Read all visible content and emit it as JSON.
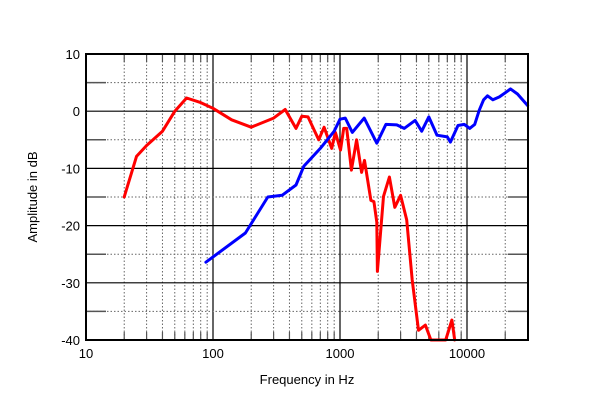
{
  "chart_data": {
    "type": "line",
    "title": "",
    "xlabel": "Frequency in Hz",
    "ylabel": "Amplitude in dB",
    "xscale": "log",
    "xlim": [
      10,
      30000
    ],
    "ylim": [
      -40,
      10
    ],
    "x_tick_labels": [
      "10",
      "100",
      "1000",
      "10000"
    ],
    "y_tick_labels": [
      "10",
      "0",
      "-10",
      "-20",
      "-30",
      "-40"
    ],
    "grid": true,
    "legend": null,
    "series": [
      {
        "name": "red",
        "color": "#ff0000",
        "points": [
          [
            20,
            -15
          ],
          [
            25,
            -7.9
          ],
          [
            30,
            -6
          ],
          [
            40,
            -3.5
          ],
          [
            50,
            0
          ],
          [
            62,
            2.3
          ],
          [
            80,
            1.5
          ],
          [
            100,
            0.5
          ],
          [
            140,
            -1.5
          ],
          [
            200,
            -2.8
          ],
          [
            300,
            -1.2
          ],
          [
            370,
            0.3
          ],
          [
            450,
            -3
          ],
          [
            500,
            -0.9
          ],
          [
            560,
            -1
          ],
          [
            680,
            -5
          ],
          [
            750,
            -2.8
          ],
          [
            860,
            -6.5
          ],
          [
            920,
            -3.7
          ],
          [
            1010,
            -6.8
          ],
          [
            1070,
            -3
          ],
          [
            1130,
            -3
          ],
          [
            1230,
            -10.3
          ],
          [
            1350,
            -5
          ],
          [
            1480,
            -10.7
          ],
          [
            1560,
            -8.6
          ],
          [
            1750,
            -15.6
          ],
          [
            1850,
            -15.8
          ],
          [
            1950,
            -19.4
          ],
          [
            1970,
            -28
          ],
          [
            2200,
            -14.9
          ],
          [
            2450,
            -11.5
          ],
          [
            2700,
            -16.8
          ],
          [
            3000,
            -14.7
          ],
          [
            3350,
            -19
          ],
          [
            3700,
            -29.5
          ],
          [
            4150,
            -38.3
          ],
          [
            4700,
            -37.4
          ],
          [
            5200,
            -40
          ],
          [
            6800,
            -40
          ],
          [
            7600,
            -36.5
          ],
          [
            8000,
            -40
          ]
        ]
      },
      {
        "name": "blue",
        "color": "#0000ff",
        "points": [
          [
            88,
            -26.4
          ],
          [
            180,
            -21.3
          ],
          [
            270,
            -15
          ],
          [
            350,
            -14.7
          ],
          [
            450,
            -12.9
          ],
          [
            520,
            -9.6
          ],
          [
            700,
            -6.5
          ],
          [
            900,
            -3.5
          ],
          [
            1000,
            -1.4
          ],
          [
            1100,
            -1.2
          ],
          [
            1250,
            -3.7
          ],
          [
            1550,
            -1.2
          ],
          [
            1950,
            -5.6
          ],
          [
            2300,
            -2.3
          ],
          [
            2800,
            -2.4
          ],
          [
            3200,
            -3
          ],
          [
            3900,
            -1.6
          ],
          [
            4400,
            -3.5
          ],
          [
            5000,
            -1
          ],
          [
            5800,
            -4.2
          ],
          [
            7000,
            -4.5
          ],
          [
            7400,
            -5.4
          ],
          [
            8500,
            -2.5
          ],
          [
            9500,
            -2.3
          ],
          [
            10500,
            -3
          ],
          [
            11500,
            -2.3
          ],
          [
            12500,
            0.2
          ],
          [
            13500,
            2
          ],
          [
            14500,
            2.7
          ],
          [
            16000,
            2
          ],
          [
            18000,
            2.5
          ],
          [
            20500,
            3.4
          ],
          [
            22000,
            3.9
          ],
          [
            25000,
            3
          ],
          [
            30000,
            1
          ]
        ]
      }
    ]
  }
}
